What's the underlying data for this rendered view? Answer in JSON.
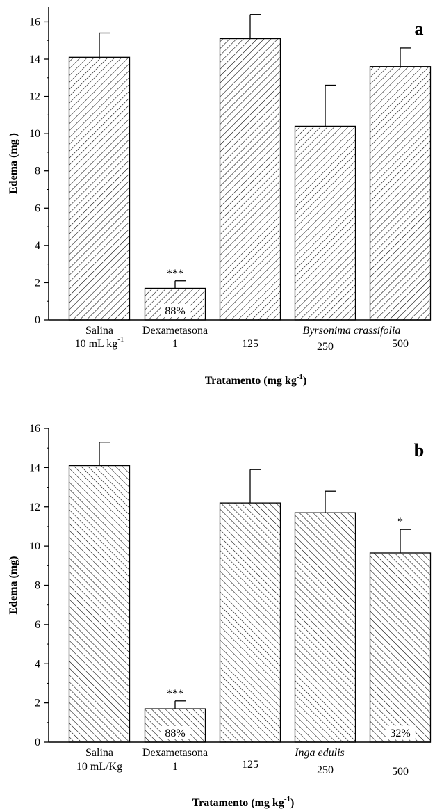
{
  "chart_data": [
    {
      "type": "bar",
      "panel_letter": "a",
      "ylabel": "Edema (mg )",
      "xlabel": "Tratamento (mg kg",
      "xlabel_sup": "-1",
      "xlabel_end": ")",
      "ylim": [
        0,
        16.8
      ],
      "yticks": [
        "0",
        "2",
        "4",
        "6",
        "8",
        "10",
        "12",
        "14",
        "16"
      ],
      "categories": [
        {
          "line1": "Salina",
          "line2": "10 mL kg",
          "line2_sup": "-1"
        },
        {
          "line1": "Dexametasona",
          "line2": "1"
        },
        {
          "line1": "",
          "line2": "125"
        },
        {
          "line1": "",
          "line2": "250"
        },
        {
          "line1": "",
          "line2": "500"
        }
      ],
      "group_label": "Byrsonima crassifolia",
      "values": [
        14.1,
        1.7,
        15.1,
        10.4,
        13.6
      ],
      "errors": [
        1.3,
        0.4,
        1.3,
        2.2,
        1.0
      ],
      "significance": [
        "",
        "***",
        "",
        "",
        ""
      ],
      "inhibition": [
        "",
        "88%",
        "",
        "",
        ""
      ],
      "hatch": "forward"
    },
    {
      "type": "bar",
      "panel_letter": "b",
      "ylabel": "Edema (mg)",
      "xlabel": "Tratamento (mg kg",
      "xlabel_sup": "-1",
      "xlabel_end": ")",
      "ylim": [
        0,
        16
      ],
      "yticks": [
        "0",
        "2",
        "4",
        "6",
        "8",
        "10",
        "12",
        "14",
        "16"
      ],
      "categories": [
        {
          "line1": "Salina",
          "line2": "10 mL/Kg"
        },
        {
          "line1": "Dexametasona",
          "line2": "1"
        },
        {
          "line1": "",
          "line2": "125"
        },
        {
          "line1": "",
          "line2": "250"
        },
        {
          "line1": "",
          "line2": "500"
        }
      ],
      "group_label": "Inga edulis",
      "values": [
        14.1,
        1.7,
        12.2,
        11.7,
        9.65
      ],
      "errors": [
        1.2,
        0.4,
        1.7,
        1.1,
        1.2
      ],
      "significance": [
        "",
        "***",
        "",
        "",
        "*"
      ],
      "inhibition": [
        "",
        "88%",
        "",
        "",
        "32%"
      ],
      "hatch": "backward"
    }
  ]
}
